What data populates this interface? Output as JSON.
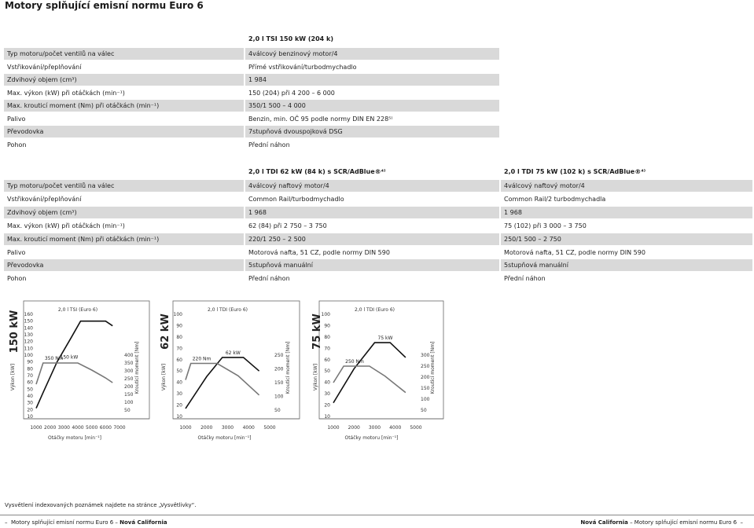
{
  "page_title": "Motory splňující emisní normu Euro 6",
  "table1": {
    "engine_header": "2,0 l TSI 150 kW (204 k)",
    "rows": [
      {
        "label": "Typ motoru/počet ventilů na válec",
        "value": "4válcový benzinový motor/4"
      },
      {
        "label": "Vstřikování/přeplňování",
        "value": "Přímé vstřikování/turbodmychadlo"
      },
      {
        "label": "Zdvihový objem (cm³)",
        "value": "1 984"
      },
      {
        "label": "Max. výkon (kW) při otáčkách (min⁻¹)",
        "value": "150 (204) při 4 200 – 6 000"
      },
      {
        "label": "Max. krouticí moment (Nm) při otáčkách (min⁻¹)",
        "value": "350/1 500 – 4 000"
      },
      {
        "label": "Palivo",
        "value": "Benzin, min. OČ 95 podle normy DIN EN 228⁵⁾"
      },
      {
        "label": "Převodovka",
        "value": "7stupňová dvouspojková DSG"
      },
      {
        "label": "Pohon",
        "value": "Přední náhon"
      }
    ]
  },
  "table2": {
    "engine_header_1": "2,0 l TDI 62 kW (84 k) s SCR/AdBlue®⁴⁾",
    "engine_header_2": "2,0 l TDI 75 kW (102 k) s SCR/AdBlue®⁴⁾",
    "rows": [
      {
        "label": "Typ motoru/počet ventilů na válec",
        "v1": "4válcový naftový motor/4",
        "v2": "4válcový naftový motor/4"
      },
      {
        "label": "Vstřikování/přeplňování",
        "v1": "Common Rail/turbodmychadlo",
        "v2": "Common Rail/2 turbodmychadla"
      },
      {
        "label": "Zdvihový objem (cm³)",
        "v1": "1 968",
        "v2": "1 968"
      },
      {
        "label": "Max. výkon (kW) při otáčkách (min⁻¹)",
        "v1": "62 (84) při 2 750 – 3 750",
        "v2": "75 (102) při 3 000 – 3 750"
      },
      {
        "label": "Max. krouticí moment (Nm) při otáčkách (min⁻¹)",
        "v1": "220/1 250 – 2 500",
        "v2": "250/1 500 – 2 750"
      },
      {
        "label": "Palivo",
        "v1": "Motorová nafta, 51 CZ, podle normy DIN 590",
        "v2": "Motorová nafta, 51 CZ, podle normy DIN 590"
      },
      {
        "label": "Převodovka",
        "v1": "5stupňová manuální",
        "v2": "5stupňová manuální"
      },
      {
        "label": "Pohon",
        "v1": "Přední náhon",
        "v2": "Přední náhon"
      }
    ]
  },
  "chart_data": [
    {
      "type": "line",
      "title": "2,0 l TSI (Euro 6)",
      "side_label": "150 kW",
      "ylabel_left": "Výkon [kW]",
      "ylabel_right": "Krouticí moment [Nm]",
      "xlabel": "Otáčky motoru [min⁻¹]",
      "x_ticks": [
        1000,
        2000,
        3000,
        4000,
        5000,
        6000,
        7000
      ],
      "y_left_ticks": [
        10,
        20,
        30,
        40,
        50,
        60,
        70,
        80,
        90,
        100,
        110,
        120,
        130,
        140,
        150,
        160
      ],
      "y_right_ticks": [
        50,
        100,
        150,
        200,
        250,
        300,
        350,
        400
      ],
      "xlim": [
        1000,
        7000
      ],
      "ylim_left": [
        10,
        160
      ],
      "ylim_right": [
        50,
        400
      ],
      "series": [
        {
          "name": "150 kW",
          "axis": "left",
          "x": [
            1000,
            1500,
            2500,
            3500,
            4200,
            6000,
            6500
          ],
          "y": [
            22,
            45,
            90,
            125,
            150,
            150,
            143
          ]
        },
        {
          "name": "350 Nm",
          "axis": "right",
          "x": [
            1000,
            1500,
            4000,
            5000,
            6000,
            6500
          ],
          "y": [
            215,
            350,
            350,
            305,
            255,
            225
          ]
        }
      ]
    },
    {
      "type": "line",
      "title": "2,0 l TDI (Euro 6)",
      "side_label": "62 kW",
      "ylabel_left": "Výkon [kW]",
      "ylabel_right": "Krouticí moment [Nm]",
      "xlabel": "Otáčky motoru [min⁻¹]",
      "x_ticks": [
        1000,
        2000,
        3000,
        4000,
        5000
      ],
      "y_left_ticks": [
        10,
        20,
        30,
        40,
        50,
        60,
        70,
        80,
        90,
        100
      ],
      "y_right_ticks": [
        50,
        100,
        150,
        200,
        250
      ],
      "xlim": [
        1000,
        5000
      ],
      "ylim_left": [
        10,
        100
      ],
      "ylim_right": [
        50,
        250
      ],
      "series": [
        {
          "name": "62 kW",
          "axis": "left",
          "x": [
            1000,
            2000,
            2750,
            3750,
            4500
          ],
          "y": [
            17,
            45,
            62,
            62,
            50
          ]
        },
        {
          "name": "220 Nm",
          "axis": "right",
          "x": [
            1000,
            1250,
            2500,
            3500,
            4500
          ],
          "y": [
            160,
            220,
            220,
            175,
            105
          ]
        }
      ]
    },
    {
      "type": "line",
      "title": "2,0 l TDI (Euro 6)",
      "side_label": "75 kW",
      "ylabel_left": "Výkon [kW]",
      "ylabel_right": "Krouticí moment [Nm]",
      "xlabel": "Otáčky motoru [min⁻¹]",
      "x_ticks": [
        1000,
        2000,
        3000,
        4000,
        5000
      ],
      "y_left_ticks": [
        10,
        20,
        30,
        40,
        50,
        60,
        70,
        80,
        90,
        100
      ],
      "y_right_ticks": [
        50,
        100,
        150,
        200,
        250,
        300
      ],
      "xlim": [
        1000,
        5000
      ],
      "ylim_left": [
        10,
        100
      ],
      "ylim_right": [
        50,
        300
      ],
      "series": [
        {
          "name": "75 kW",
          "axis": "left",
          "x": [
            1000,
            2000,
            3000,
            3750,
            4500
          ],
          "y": [
            22,
            52,
            75,
            75,
            62
          ]
        },
        {
          "name": "250 Nm",
          "axis": "right",
          "x": [
            1000,
            1500,
            2750,
            3500,
            4500
          ],
          "y": [
            175,
            250,
            250,
            205,
            130
          ]
        }
      ]
    }
  ],
  "footnote": "Vysvětlení indexovaných poznámek najdete na stránce „Vysvětlivky“.",
  "footer_left_prefix": "Motory splňující emisní normu Euro 6 – ",
  "footer_left_bold": "Nová California",
  "footer_right_bold": "Nová California",
  "footer_right_suffix": " – Motory splňující emisní normu Euro 6"
}
